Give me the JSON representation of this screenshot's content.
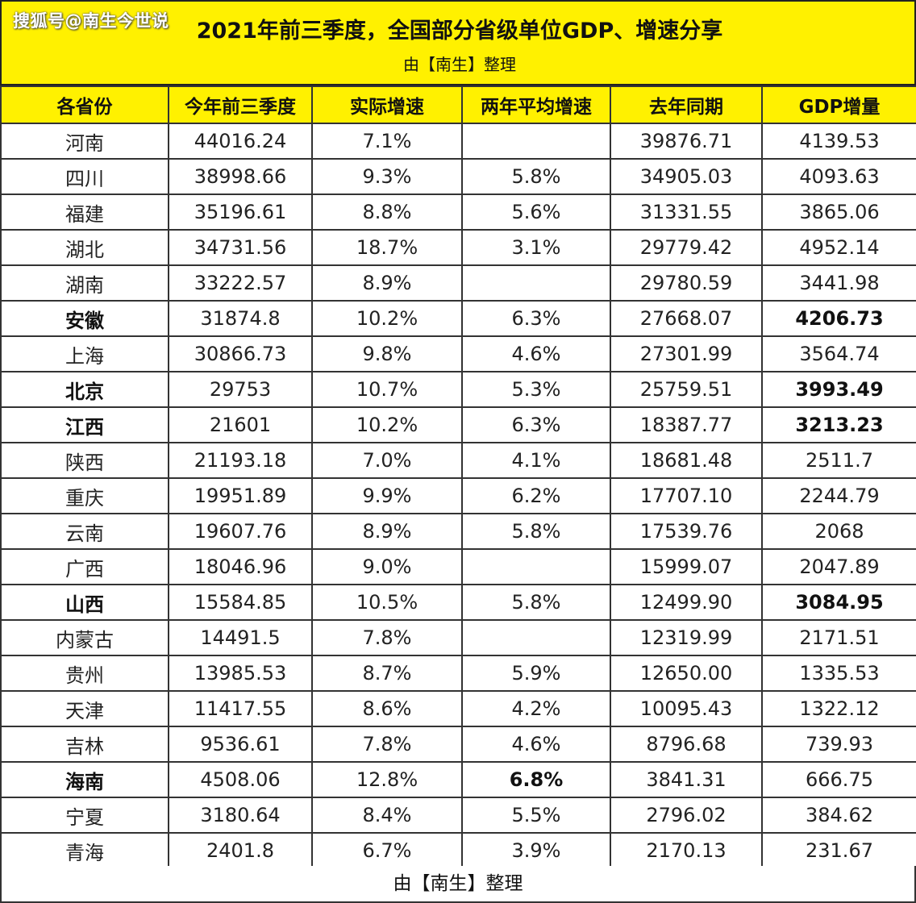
{
  "header": {
    "watermark": "搜狐号@南生今世说",
    "title": "2021年前三季度，全国部分省级单位GDP、增速分享",
    "subtitle": "由【南生】整理",
    "background_color": "#fff100"
  },
  "table": {
    "columns": [
      "各省份",
      "今年前三季度",
      "实际增速",
      "两年平均增速",
      "去年同期",
      "GDP增量"
    ],
    "rows": [
      {
        "province": "河南",
        "gdp_2021": "44016.24",
        "real_growth": "7.1%",
        "two_year_avg": "",
        "last_year": "39876.71",
        "increase": "4139.53",
        "bold": []
      },
      {
        "province": "四川",
        "gdp_2021": "38998.66",
        "real_growth": "9.3%",
        "two_year_avg": "5.8%",
        "last_year": "34905.03",
        "increase": "4093.63",
        "bold": []
      },
      {
        "province": "福建",
        "gdp_2021": "35196.61",
        "real_growth": "8.8%",
        "two_year_avg": "5.6%",
        "last_year": "31331.55",
        "increase": "3865.06",
        "bold": []
      },
      {
        "province": "湖北",
        "gdp_2021": "34731.56",
        "real_growth": "18.7%",
        "two_year_avg": "3.1%",
        "last_year": "29779.42",
        "increase": "4952.14",
        "bold": []
      },
      {
        "province": "湖南",
        "gdp_2021": "33222.57",
        "real_growth": "8.9%",
        "two_year_avg": "",
        "last_year": "29780.59",
        "increase": "3441.98",
        "bold": []
      },
      {
        "province": "安徽",
        "gdp_2021": "31874.8",
        "real_growth": "10.2%",
        "two_year_avg": "6.3%",
        "last_year": "27668.07",
        "increase": "4206.73",
        "bold": [
          "province",
          "increase"
        ]
      },
      {
        "province": "上海",
        "gdp_2021": "30866.73",
        "real_growth": "9.8%",
        "two_year_avg": "4.6%",
        "last_year": "27301.99",
        "increase": "3564.74",
        "bold": []
      },
      {
        "province": "北京",
        "gdp_2021": "29753",
        "real_growth": "10.7%",
        "two_year_avg": "5.3%",
        "last_year": "25759.51",
        "increase": "3993.49",
        "bold": [
          "province",
          "increase"
        ]
      },
      {
        "province": "江西",
        "gdp_2021": "21601",
        "real_growth": "10.2%",
        "two_year_avg": "6.3%",
        "last_year": "18387.77",
        "increase": "3213.23",
        "bold": [
          "province",
          "increase"
        ]
      },
      {
        "province": "陕西",
        "gdp_2021": "21193.18",
        "real_growth": "7.0%",
        "two_year_avg": "4.1%",
        "last_year": "18681.48",
        "increase": "2511.7",
        "bold": []
      },
      {
        "province": "重庆",
        "gdp_2021": "19951.89",
        "real_growth": "9.9%",
        "two_year_avg": "6.2%",
        "last_year": "17707.10",
        "increase": "2244.79",
        "bold": []
      },
      {
        "province": "云南",
        "gdp_2021": "19607.76",
        "real_growth": "8.9%",
        "two_year_avg": "5.8%",
        "last_year": "17539.76",
        "increase": "2068",
        "bold": []
      },
      {
        "province": "广西",
        "gdp_2021": "18046.96",
        "real_growth": "9.0%",
        "two_year_avg": "",
        "last_year": "15999.07",
        "increase": "2047.89",
        "bold": []
      },
      {
        "province": "山西",
        "gdp_2021": "15584.85",
        "real_growth": "10.5%",
        "two_year_avg": "5.8%",
        "last_year": "12499.90",
        "increase": "3084.95",
        "bold": [
          "province",
          "increase"
        ]
      },
      {
        "province": "内蒙古",
        "gdp_2021": "14491.5",
        "real_growth": "7.8%",
        "two_year_avg": "",
        "last_year": "12319.99",
        "increase": "2171.51",
        "bold": []
      },
      {
        "province": "贵州",
        "gdp_2021": "13985.53",
        "real_growth": "8.7%",
        "two_year_avg": "5.9%",
        "last_year": "12650.00",
        "increase": "1335.53",
        "bold": []
      },
      {
        "province": "天津",
        "gdp_2021": "11417.55",
        "real_growth": "8.6%",
        "two_year_avg": "4.2%",
        "last_year": "10095.43",
        "increase": "1322.12",
        "bold": []
      },
      {
        "province": "吉林",
        "gdp_2021": "9536.61",
        "real_growth": "7.8%",
        "two_year_avg": "4.6%",
        "last_year": "8796.68",
        "increase": "739.93",
        "bold": []
      },
      {
        "province": "海南",
        "gdp_2021": "4508.06",
        "real_growth": "12.8%",
        "two_year_avg": "6.8%",
        "last_year": "3841.31",
        "increase": "666.75",
        "bold": [
          "province",
          "two_year_avg"
        ]
      },
      {
        "province": "宁夏",
        "gdp_2021": "3180.64",
        "real_growth": "8.4%",
        "two_year_avg": "5.5%",
        "last_year": "2796.02",
        "increase": "384.62",
        "bold": []
      },
      {
        "province": "青海",
        "gdp_2021": "2401.8",
        "real_growth": "6.7%",
        "two_year_avg": "3.9%",
        "last_year": "2170.13",
        "increase": "231.67",
        "bold": []
      }
    ]
  },
  "footer": {
    "text": "由【南生】整理"
  }
}
